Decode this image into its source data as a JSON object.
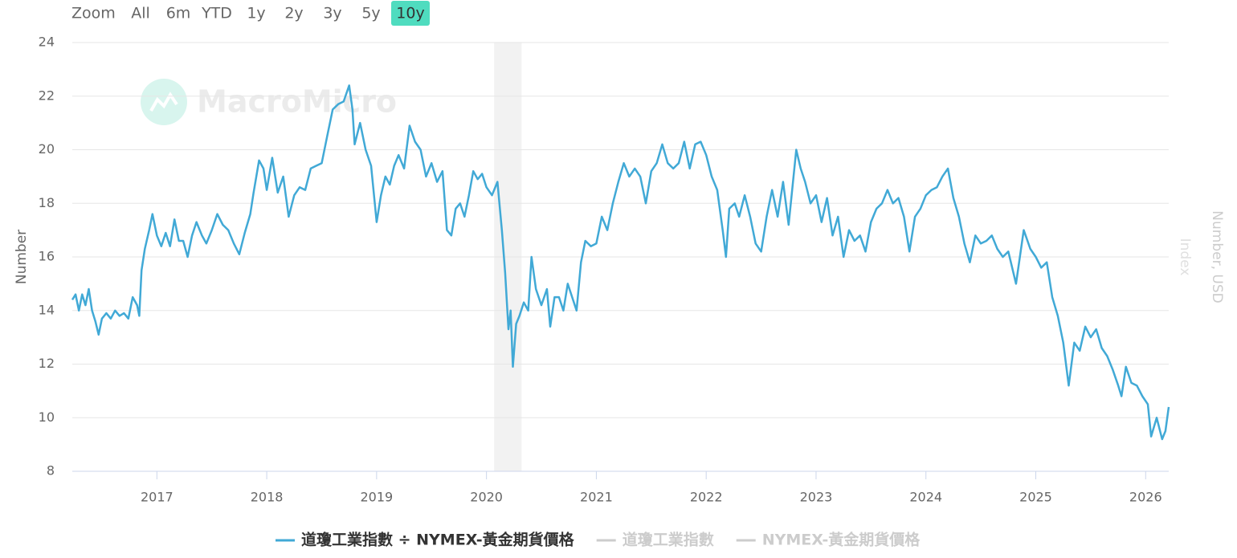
{
  "range_selector": {
    "label": "Zoom",
    "buttons": [
      "All",
      "6m",
      "YTD",
      "1y",
      "2y",
      "3y",
      "5y",
      "10y"
    ],
    "selected": 7
  },
  "watermark": "MacroMicro",
  "chart_data": {
    "type": "line",
    "ylabel": "Number",
    "y2label": "Number, USD",
    "y3label": "Index",
    "xlim": [
      2016.23,
      2026.21
    ],
    "xticks": [
      2017,
      2018,
      2019,
      2020,
      2021,
      2022,
      2023,
      2024,
      2025,
      2026
    ],
    "ylim": [
      8,
      24
    ],
    "yticks": [
      8,
      10,
      12,
      14,
      16,
      18,
      20,
      22,
      24
    ],
    "grid": true,
    "bands": [
      {
        "from": 2020.07,
        "to": 2020.32,
        "color": "#f2f2f2"
      }
    ],
    "x": [
      2016.23,
      2016.26,
      2016.29,
      2016.32,
      2016.35,
      2016.38,
      2016.41,
      2016.44,
      2016.47,
      2016.5,
      2016.54,
      2016.58,
      2016.62,
      2016.66,
      2016.7,
      2016.74,
      2016.78,
      2016.82,
      2016.84,
      2016.86,
      2016.89,
      2016.93,
      2016.96,
      2017.0,
      2017.04,
      2017.08,
      2017.12,
      2017.16,
      2017.2,
      2017.24,
      2017.28,
      2017.32,
      2017.36,
      2017.41,
      2017.45,
      2017.5,
      2017.55,
      2017.6,
      2017.65,
      2017.7,
      2017.75,
      2017.8,
      2017.85,
      2017.88,
      2017.93,
      2017.97,
      2018.0,
      2018.05,
      2018.1,
      2018.15,
      2018.2,
      2018.25,
      2018.3,
      2018.35,
      2018.4,
      2018.45,
      2018.5,
      2018.55,
      2018.6,
      2018.65,
      2018.7,
      2018.75,
      2018.78,
      2018.8,
      2018.85,
      2018.9,
      2018.95,
      2019.0,
      2019.04,
      2019.08,
      2019.12,
      2019.16,
      2019.2,
      2019.25,
      2019.3,
      2019.35,
      2019.4,
      2019.45,
      2019.5,
      2019.55,
      2019.6,
      2019.64,
      2019.68,
      2019.72,
      2019.76,
      2019.8,
      2019.84,
      2019.88,
      2019.92,
      2019.96,
      2020.0,
      2020.05,
      2020.1,
      2020.14,
      2020.17,
      2020.2,
      2020.22,
      2020.24,
      2020.27,
      2020.3,
      2020.34,
      2020.38,
      2020.41,
      2020.45,
      2020.5,
      2020.55,
      2020.58,
      2020.62,
      2020.66,
      2020.7,
      2020.74,
      2020.78,
      2020.82,
      2020.86,
      2020.9,
      2020.95,
      2021.0,
      2021.05,
      2021.1,
      2021.15,
      2021.2,
      2021.25,
      2021.3,
      2021.35,
      2021.4,
      2021.45,
      2021.5,
      2021.55,
      2021.6,
      2021.65,
      2021.7,
      2021.75,
      2021.8,
      2021.85,
      2021.9,
      2021.95,
      2022.0,
      2022.05,
      2022.1,
      2022.15,
      2022.18,
      2022.21,
      2022.26,
      2022.3,
      2022.35,
      2022.4,
      2022.45,
      2022.5,
      2022.55,
      2022.6,
      2022.65,
      2022.7,
      2022.75,
      2022.82,
      2022.86,
      2022.9,
      2022.95,
      2023.0,
      2023.05,
      2023.1,
      2023.15,
      2023.2,
      2023.25,
      2023.3,
      2023.35,
      2023.4,
      2023.45,
      2023.5,
      2023.55,
      2023.6,
      2023.65,
      2023.7,
      2023.75,
      2023.8,
      2023.85,
      2023.9,
      2023.95,
      2024.0,
      2024.05,
      2024.1,
      2024.15,
      2024.2,
      2024.25,
      2024.3,
      2024.35,
      2024.4,
      2024.45,
      2024.5,
      2024.55,
      2024.6,
      2024.65,
      2024.7,
      2024.75,
      2024.82,
      2024.89,
      2024.95,
      2025.0,
      2025.05,
      2025.1,
      2025.15,
      2025.2,
      2025.25,
      2025.3,
      2025.35,
      2025.4,
      2025.45,
      2025.5,
      2025.55,
      2025.6,
      2025.65,
      2025.7,
      2025.75,
      2025.78,
      2025.82,
      2025.87,
      2025.92,
      2025.97,
      2026.02,
      2026.05,
      2026.1,
      2026.15,
      2026.18,
      2026.21
    ],
    "series": [
      {
        "name": "道瓊工業指數 ÷ NYMEX-黃金期貨價格",
        "color": "#41a9d6",
        "values": [
          14.4,
          14.6,
          14.0,
          14.6,
          14.2,
          14.8,
          14.0,
          13.6,
          13.1,
          13.7,
          13.9,
          13.7,
          14.0,
          13.8,
          13.9,
          13.7,
          14.5,
          14.2,
          13.8,
          15.5,
          16.3,
          17.0,
          17.6,
          16.8,
          16.4,
          16.9,
          16.4,
          17.4,
          16.6,
          16.6,
          16.0,
          16.8,
          17.3,
          16.8,
          16.5,
          17.0,
          17.6,
          17.2,
          17.0,
          16.5,
          16.1,
          16.9,
          17.6,
          18.4,
          19.6,
          19.3,
          18.5,
          19.7,
          18.4,
          19.0,
          17.5,
          18.3,
          18.6,
          18.5,
          19.3,
          19.4,
          19.5,
          20.5,
          21.5,
          21.7,
          21.8,
          22.4,
          21.5,
          20.2,
          21.0,
          20.0,
          19.4,
          17.3,
          18.3,
          19.0,
          18.7,
          19.4,
          19.8,
          19.3,
          20.9,
          20.3,
          20.0,
          19.0,
          19.5,
          18.8,
          19.2,
          17.0,
          16.8,
          17.8,
          18.0,
          17.5,
          18.3,
          19.2,
          18.9,
          19.1,
          18.6,
          18.3,
          18.8,
          17.0,
          15.4,
          13.3,
          14.0,
          11.9,
          13.5,
          13.8,
          14.3,
          14.0,
          16.0,
          14.8,
          14.2,
          14.8,
          13.4,
          14.5,
          14.5,
          14.0,
          15.0,
          14.5,
          14.0,
          15.8,
          16.6,
          16.4,
          16.5,
          17.5,
          17.0,
          18.0,
          18.8,
          19.5,
          19.0,
          19.3,
          19.0,
          18.0,
          19.2,
          19.5,
          20.2,
          19.5,
          19.3,
          19.5,
          20.3,
          19.3,
          20.2,
          20.3,
          19.8,
          19.0,
          18.5,
          17.0,
          16.0,
          17.8,
          18.0,
          17.5,
          18.3,
          17.5,
          16.5,
          16.2,
          17.5,
          18.5,
          17.5,
          18.8,
          17.2,
          20.0,
          19.3,
          18.8,
          18.0,
          18.3,
          17.3,
          18.2,
          16.8,
          17.5,
          16.0,
          17.0,
          16.6,
          16.8,
          16.2,
          17.3,
          17.8,
          18.0,
          18.5,
          18.0,
          18.2,
          17.5,
          16.2,
          17.5,
          17.8,
          18.3,
          18.5,
          18.6,
          19.0,
          19.3,
          18.2,
          17.5,
          16.5,
          15.8,
          16.8,
          16.5,
          16.6,
          16.8,
          16.3,
          16.0,
          16.2,
          15.0,
          17.0,
          16.3,
          16.0,
          15.6,
          15.8,
          14.5,
          13.8,
          12.8,
          11.2,
          12.8,
          12.5,
          13.4,
          13.0,
          13.3,
          12.6,
          12.3,
          11.8,
          11.2,
          10.8,
          11.9,
          11.3,
          11.2,
          10.8,
          10.5,
          9.3,
          10.0,
          9.2,
          9.5,
          10.4
        ]
      }
    ],
    "hidden_series": [
      {
        "name": "道瓊工業指數",
        "color": "#cccccc"
      },
      {
        "name": "NYMEX-黃金期貨價格",
        "color": "#cccccc"
      }
    ]
  }
}
